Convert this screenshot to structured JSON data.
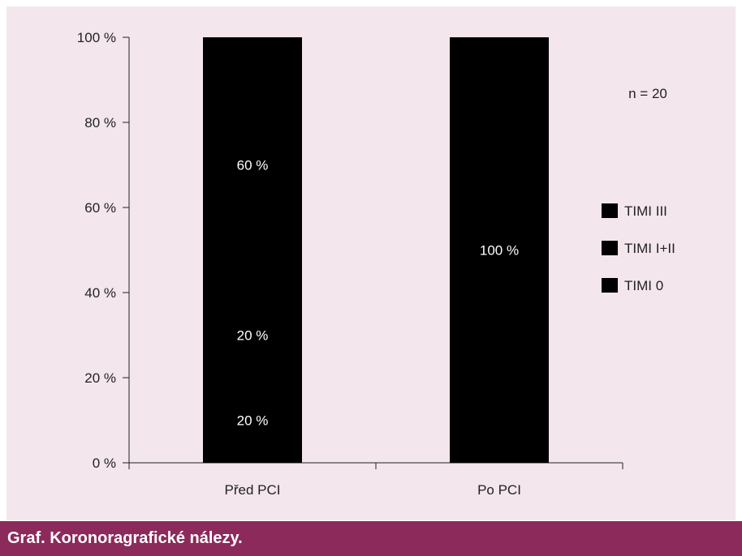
{
  "caption": "Graf. Koronoragrafické nálezy.",
  "annotation": "n = 20",
  "colors": {
    "background": "#f3e6ec",
    "caption_bg": "#8c2a5c",
    "TIMI III": "#8c2a5c",
    "TIMI I+II": "#b0668c",
    "TIMI 0": "#d3a2bc"
  },
  "chart_data": {
    "type": "bar",
    "stacked": true,
    "categories": [
      "Před PCI",
      "Po PCI"
    ],
    "series": [
      {
        "name": "TIMI 0",
        "values": [
          20,
          0
        ],
        "labels": [
          "20 %",
          ""
        ]
      },
      {
        "name": "TIMI I+II",
        "values": [
          20,
          0
        ],
        "labels": [
          "20 %",
          ""
        ]
      },
      {
        "name": "TIMI III",
        "values": [
          60,
          100
        ],
        "labels": [
          "60 %",
          "100 %"
        ]
      }
    ],
    "yticks": [
      "0 %",
      "20 %",
      "40 %",
      "60 %",
      "80 %",
      "100 %"
    ],
    "ylim": [
      0,
      100
    ],
    "legend": [
      "TIMI III",
      "TIMI I+II",
      "TIMI 0"
    ],
    "legend_position": "right",
    "grid": false
  }
}
